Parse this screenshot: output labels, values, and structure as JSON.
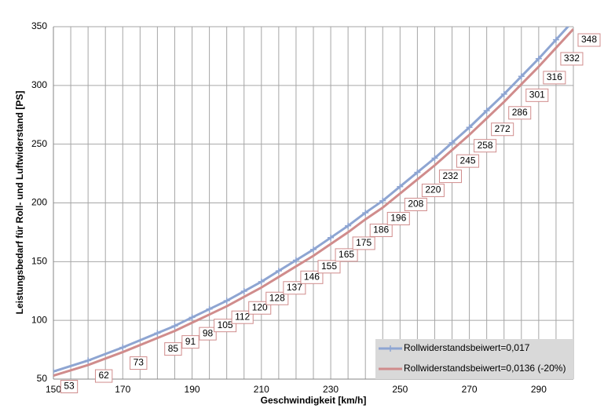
{
  "chart_data": {
    "type": "line",
    "x_label": "Geschwindigkeit [km/h]",
    "y_label": "Leistungsbedarf für Roll- und Luftwiderstand [PS]",
    "x": [
      150,
      160,
      170,
      180,
      185,
      190,
      195,
      200,
      205,
      210,
      215,
      220,
      225,
      230,
      235,
      240,
      245,
      250,
      255,
      260,
      265,
      270,
      275,
      280,
      285,
      290,
      295,
      300
    ],
    "series": [
      {
        "name": "Rollwiderstandsbeiwert=0,017",
        "color": "#8ea5d2",
        "markers": true,
        "values": [
          56.5,
          65.8,
          77.0,
          89.2,
          95.3,
          102.5,
          109.6,
          116.7,
          124.8,
          132.9,
          142.1,
          151.2,
          160.3,
          170.4,
          180.5,
          191.6,
          201.8,
          213.9,
          226.0,
          238.1,
          251.2,
          264.3,
          278.5,
          292.6,
          307.7,
          322.8,
          338.9,
          355.1
        ]
      },
      {
        "name": "Rollwiderstandsbeiwert=0,0136 (-20%)",
        "color": "#d08c8c",
        "data_labels": true,
        "values": [
          53,
          62,
          73,
          85,
          91,
          98,
          105,
          112,
          120,
          128,
          137,
          146,
          155,
          165,
          175,
          186,
          196,
          208,
          220,
          232,
          245,
          258,
          272,
          286,
          301,
          316,
          332,
          348
        ]
      }
    ],
    "xlim": [
      150,
      300
    ],
    "xticks": [
      150,
      170,
      190,
      210,
      230,
      250,
      270,
      290
    ],
    "xgrid": [
      150,
      155,
      160,
      165,
      170,
      175,
      180,
      185,
      190,
      195,
      200,
      205,
      210,
      215,
      220,
      225,
      230,
      235,
      240,
      245,
      250,
      255,
      260,
      265,
      270,
      275,
      280,
      285,
      290,
      295,
      300
    ],
    "ylim": [
      50,
      350
    ],
    "yticks": [
      50,
      100,
      150,
      200,
      250,
      300,
      350
    ],
    "grid": true,
    "legend": "lower right"
  }
}
